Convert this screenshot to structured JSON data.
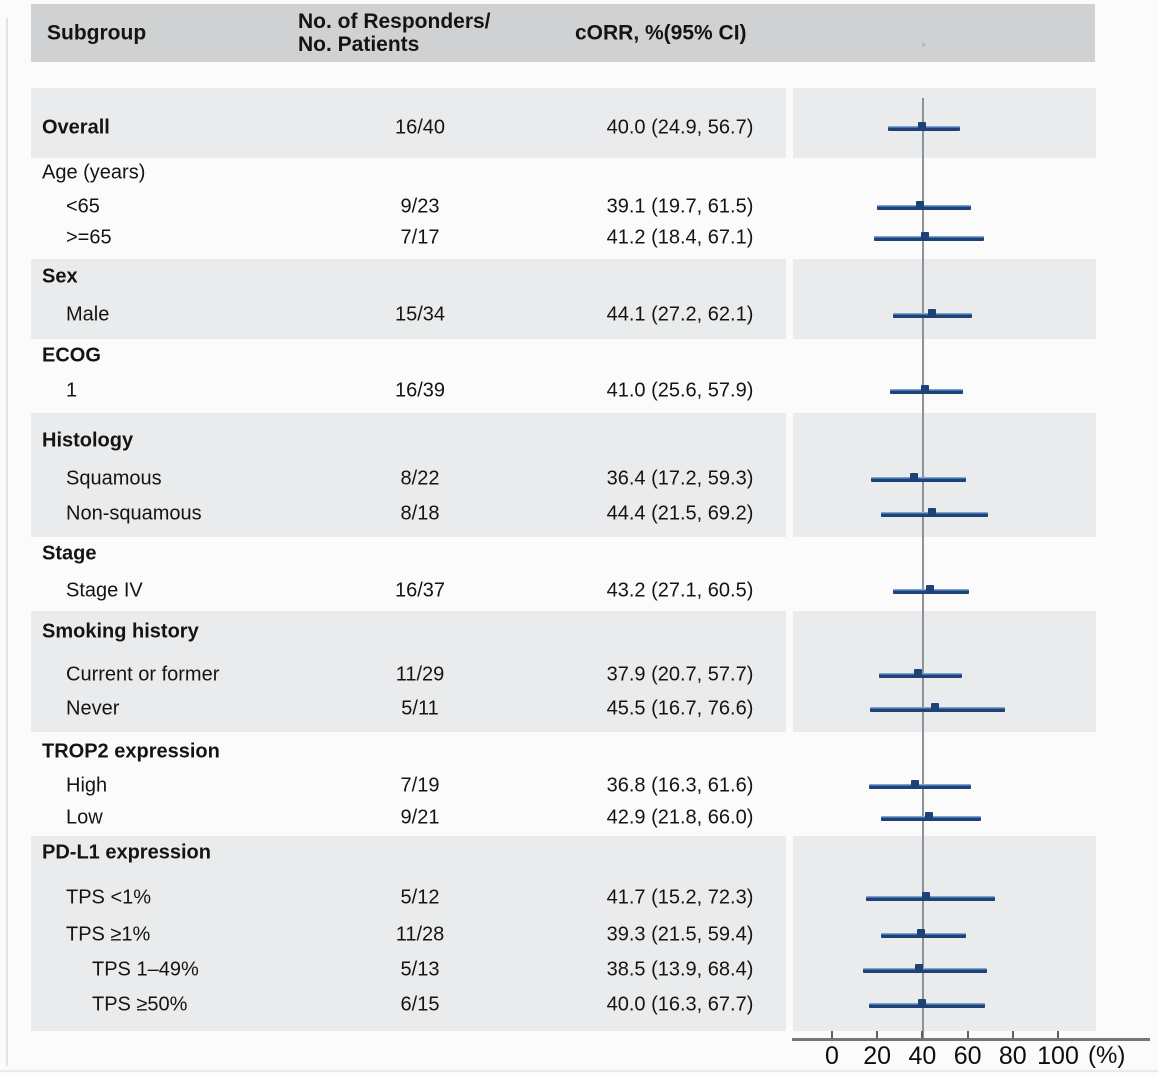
{
  "header": {
    "subgroup": "Subgroup",
    "responders_line1": "No. of Responders/",
    "responders_line2": "No. Patients",
    "corr": "cORR, %(95% CI)"
  },
  "axis": {
    "ticks": [
      0,
      20,
      40,
      60,
      80,
      100
    ],
    "unit_label": "(%)"
  },
  "colors": {
    "ci_bar": "#1e4176",
    "ci_bar_highlight": "#7ba4d8",
    "reference_line": "#8e9297",
    "shaded_band": "#e9ebec",
    "header_band": "#cfd1d3",
    "axis": "#767676",
    "text": "#141414"
  },
  "chart_data": {
    "type": "forest",
    "title": "",
    "columns": [
      "Subgroup",
      "No. of Responders/No. Patients",
      "cORR, %(95% CI)"
    ],
    "xlabel": "(%)",
    "xlim": [
      0,
      100
    ],
    "x_ticks": [
      0,
      20,
      40,
      60,
      80,
      100
    ],
    "reference_line_x": 40,
    "legend": "none",
    "grid": "off",
    "groups": [
      {
        "header": null,
        "shaded": true,
        "rows": [
          {
            "label": "Overall",
            "bold": true,
            "indent": 0,
            "n": "16/40",
            "orr": "40.0 (24.9, 56.7)",
            "est": 40.0,
            "lo": 24.9,
            "hi": 56.7
          }
        ]
      },
      {
        "header": {
          "label": "Age (years)",
          "bold": false
        },
        "shaded": false,
        "rows": [
          {
            "label": "<65",
            "bold": false,
            "indent": 1,
            "n": "9/23",
            "orr": "39.1 (19.7, 61.5)",
            "est": 39.1,
            "lo": 19.7,
            "hi": 61.5
          },
          {
            "label": ">=65",
            "bold": false,
            "indent": 1,
            "n": "7/17",
            "orr": "41.2 (18.4, 67.1)",
            "est": 41.2,
            "lo": 18.4,
            "hi": 67.1
          }
        ]
      },
      {
        "header": {
          "label": "Sex",
          "bold": true
        },
        "shaded": true,
        "rows": [
          {
            "label": "Male",
            "bold": false,
            "indent": 1,
            "n": "15/34",
            "orr": "44.1 (27.2, 62.1)",
            "est": 44.1,
            "lo": 27.2,
            "hi": 62.1
          }
        ]
      },
      {
        "header": {
          "label": "ECOG",
          "bold": true
        },
        "shaded": false,
        "rows": [
          {
            "label": "1",
            "bold": false,
            "indent": 1,
            "n": "16/39",
            "orr": "41.0 (25.6, 57.9)",
            "est": 41.0,
            "lo": 25.6,
            "hi": 57.9
          }
        ]
      },
      {
        "header": {
          "label": "Histology",
          "bold": true
        },
        "shaded": true,
        "rows": [
          {
            "label": "Squamous",
            "bold": false,
            "indent": 1,
            "n": "8/22",
            "orr": "36.4 (17.2, 59.3)",
            "est": 36.4,
            "lo": 17.2,
            "hi": 59.3
          },
          {
            "label": "Non-squamous",
            "bold": false,
            "indent": 1,
            "n": "8/18",
            "orr": "44.4 (21.5, 69.2)",
            "est": 44.4,
            "lo": 21.5,
            "hi": 69.2
          }
        ]
      },
      {
        "header": {
          "label": "Stage",
          "bold": true
        },
        "shaded": false,
        "rows": [
          {
            "label": "Stage IV",
            "bold": false,
            "indent": 1,
            "n": "16/37",
            "orr": "43.2 (27.1, 60.5)",
            "est": 43.2,
            "lo": 27.1,
            "hi": 60.5
          }
        ]
      },
      {
        "header": {
          "label": "Smoking history",
          "bold": true
        },
        "shaded": true,
        "rows": [
          {
            "label": "Current or former",
            "bold": false,
            "indent": 1,
            "n": "11/29",
            "orr": "37.9 (20.7, 57.7)",
            "est": 37.9,
            "lo": 20.7,
            "hi": 57.7
          },
          {
            "label": "Never",
            "bold": false,
            "indent": 1,
            "n": "5/11",
            "orr": "45.5 (16.7, 76.6)",
            "est": 45.5,
            "lo": 16.7,
            "hi": 76.6
          }
        ]
      },
      {
        "header": {
          "label": "TROP2 expression",
          "bold": true
        },
        "shaded": false,
        "rows": [
          {
            "label": "High",
            "bold": false,
            "indent": 1,
            "n": "7/19",
            "orr": "36.8 (16.3, 61.6)",
            "est": 36.8,
            "lo": 16.3,
            "hi": 61.6
          },
          {
            "label": "Low",
            "bold": false,
            "indent": 1,
            "n": "9/21",
            "orr": "42.9 (21.8, 66.0)",
            "est": 42.9,
            "lo": 21.8,
            "hi": 66.0
          }
        ]
      },
      {
        "header": {
          "label": "PD-L1 expression",
          "bold": true
        },
        "shaded": true,
        "rows": [
          {
            "label": "TPS <1%",
            "bold": false,
            "indent": 1,
            "n": "5/12",
            "orr": "41.7 (15.2, 72.3)",
            "est": 41.7,
            "lo": 15.2,
            "hi": 72.3
          },
          {
            "label": "TPS ≥1%",
            "bold": false,
            "indent": 1,
            "n": "11/28",
            "orr": "39.3 (21.5, 59.4)",
            "est": 39.3,
            "lo": 21.5,
            "hi": 59.4
          },
          {
            "label": "TPS 1–49%",
            "bold": false,
            "indent": 2,
            "n": "5/13",
            "orr": "38.5 (13.9, 68.4)",
            "est": 38.5,
            "lo": 13.9,
            "hi": 68.4
          },
          {
            "label": "TPS ≥50%",
            "bold": false,
            "indent": 2,
            "n": "6/15",
            "orr": "40.0 (16.3, 67.7)",
            "est": 40.0,
            "lo": 16.3,
            "hi": 67.7
          }
        ]
      }
    ]
  }
}
